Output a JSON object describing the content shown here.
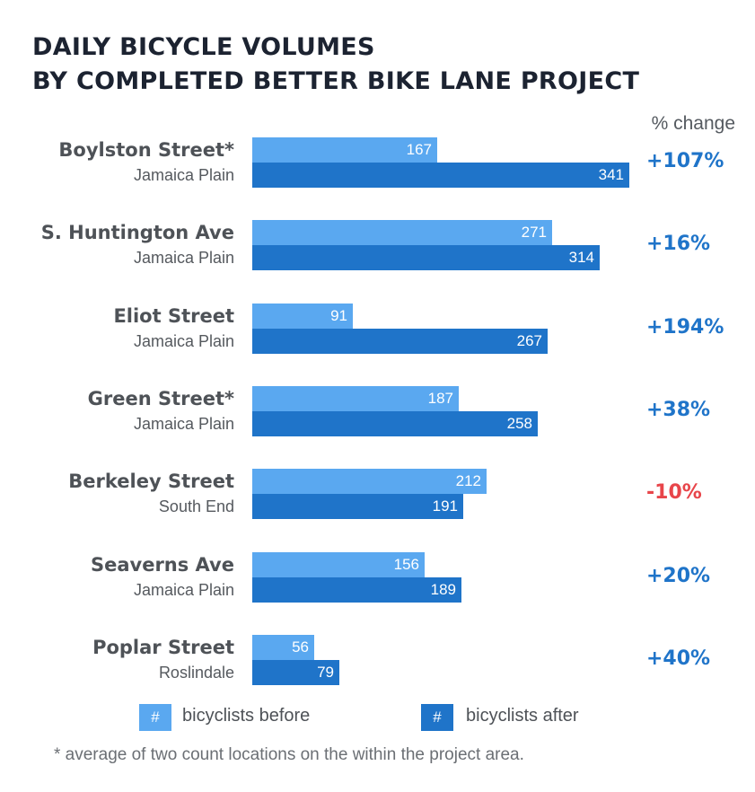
{
  "chart_data": {
    "type": "bar",
    "orientation": "horizontal",
    "title_lines": [
      "DAILY BICYCLE VOLUMES",
      "BY COMPLETED BETTER BIKE LANE PROJECT"
    ],
    "pct_header": "% change",
    "categories": [
      {
        "name": "Boylston Street*",
        "neighborhood": "Jamaica Plain",
        "pct_change": "+107%"
      },
      {
        "name": "S. Huntington Ave",
        "neighborhood": "Jamaica Plain",
        "pct_change": "+16%"
      },
      {
        "name": "Eliot Street",
        "neighborhood": "Jamaica Plain",
        "pct_change": "+194%"
      },
      {
        "name": "Green Street*",
        "neighborhood": "Jamaica Plain",
        "pct_change": "+38%"
      },
      {
        "name": "Berkeley Street",
        "neighborhood": "South End",
        "pct_change": "-10%"
      },
      {
        "name": "Seaverns Ave",
        "neighborhood": "Jamaica Plain",
        "pct_change": "+20%"
      },
      {
        "name": "Poplar Street",
        "neighborhood": "Roslindale",
        "pct_change": "+40%"
      }
    ],
    "series": [
      {
        "name": "bicyclists before",
        "color": "#5aa8f0",
        "values": [
          167,
          271,
          91,
          187,
          212,
          156,
          56
        ]
      },
      {
        "name": "bicyclists after",
        "color": "#1f74c9",
        "values": [
          341,
          314,
          267,
          258,
          191,
          189,
          79
        ]
      }
    ],
    "positive_color": "#1f74c9",
    "negative_color": "#e8454a",
    "legend": {
      "swatch_text": "#",
      "position": "bottom"
    },
    "footnote": "* average of two count locations on the within the project area."
  }
}
